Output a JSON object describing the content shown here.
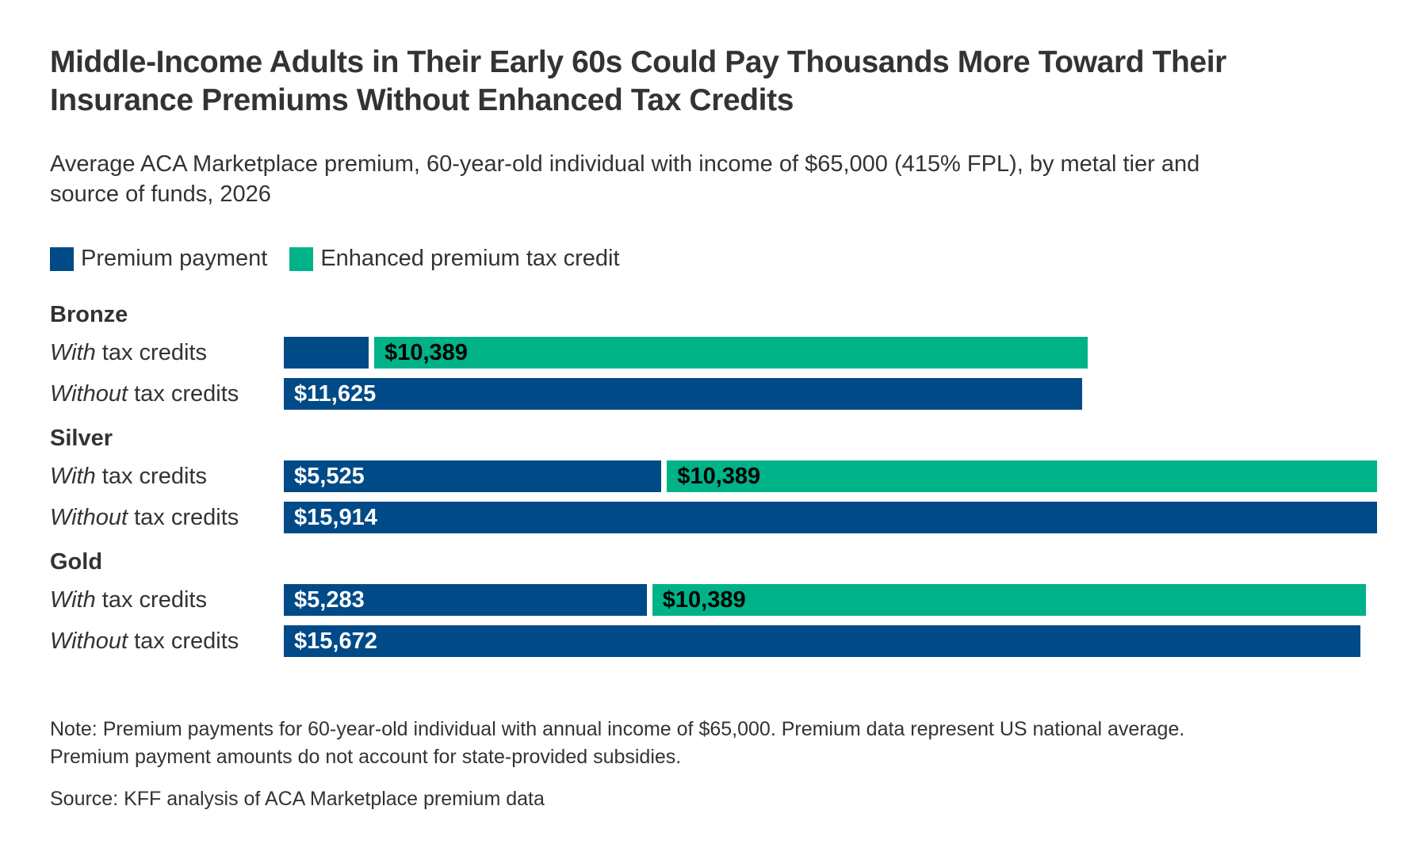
{
  "header": {
    "title": "Middle-Income Adults in Their Early 60s Could Pay Thousands More Toward Their Insurance Premiums Without Enhanced Tax Credits",
    "title_lines": [
      "Middle-Income Adults in Their Early 60s Could Pay Thousands More Toward Their",
      "Insurance Premiums Without Enhanced Tax Credits"
    ],
    "subtitle_lines": [
      "Average ACA Marketplace premium, 60-year-old individual with income of $65,000 (415% FPL), by metal tier and",
      "source of funds, 2026"
    ]
  },
  "legend": {
    "items": [
      {
        "label": "Premium payment",
        "series": "Premium payment"
      },
      {
        "label": "Enhanced premium tax credit",
        "series": "Enhanced premium tax credit"
      }
    ]
  },
  "chart_data": {
    "type": "bar",
    "orientation": "horizontal",
    "stacked": true,
    "unit": "US dollars per year",
    "xlim": [
      0,
      15914
    ],
    "grid": false,
    "legend_position": "top",
    "series_colors": {
      "Premium payment": "#004A87",
      "Enhanced premium tax credit": "#00B288"
    },
    "value_label_colors": {
      "Premium payment": "#ffffff",
      "Enhanced premium tax credit": "#000000"
    },
    "groups": [
      {
        "tier": "Bronze",
        "rows": [
          {
            "label_italic": "With",
            "label_rest": " tax credits",
            "total": 11625,
            "segments": [
              {
                "series": "Premium payment",
                "value": 1236,
                "label": ""
              },
              {
                "series": "Enhanced premium tax credit",
                "value": 10389,
                "label": "$10,389"
              }
            ]
          },
          {
            "label_italic": "Without",
            "label_rest": " tax credits",
            "total": 11625,
            "segments": [
              {
                "series": "Premium payment",
                "value": 11625,
                "label": "$11,625"
              }
            ]
          }
        ]
      },
      {
        "tier": "Silver",
        "rows": [
          {
            "label_italic": "With",
            "label_rest": " tax credits",
            "total": 15914,
            "segments": [
              {
                "series": "Premium payment",
                "value": 5525,
                "label": "$5,525"
              },
              {
                "series": "Enhanced premium tax credit",
                "value": 10389,
                "label": "$10,389"
              }
            ]
          },
          {
            "label_italic": "Without",
            "label_rest": " tax credits",
            "total": 15914,
            "segments": [
              {
                "series": "Premium payment",
                "value": 15914,
                "label": "$15,914"
              }
            ]
          }
        ]
      },
      {
        "tier": "Gold",
        "rows": [
          {
            "label_italic": "With",
            "label_rest": " tax credits",
            "total": 15672,
            "segments": [
              {
                "series": "Premium payment",
                "value": 5283,
                "label": "$5,283"
              },
              {
                "series": "Enhanced premium tax credit",
                "value": 10389,
                "label": "$10,389"
              }
            ]
          },
          {
            "label_italic": "Without",
            "label_rest": " tax credits",
            "total": 15672,
            "segments": [
              {
                "series": "Premium payment",
                "value": 15672,
                "label": "$15,672"
              }
            ]
          }
        ]
      }
    ]
  },
  "notes": {
    "line1": "Note: Premium payments for 60-year-old individual with annual income of $65,000. Premium data represent US national average.",
    "line2": "Premium payment amounts do not account for state-provided subsidies."
  },
  "source": "Source: KFF analysis of ACA Marketplace premium data"
}
